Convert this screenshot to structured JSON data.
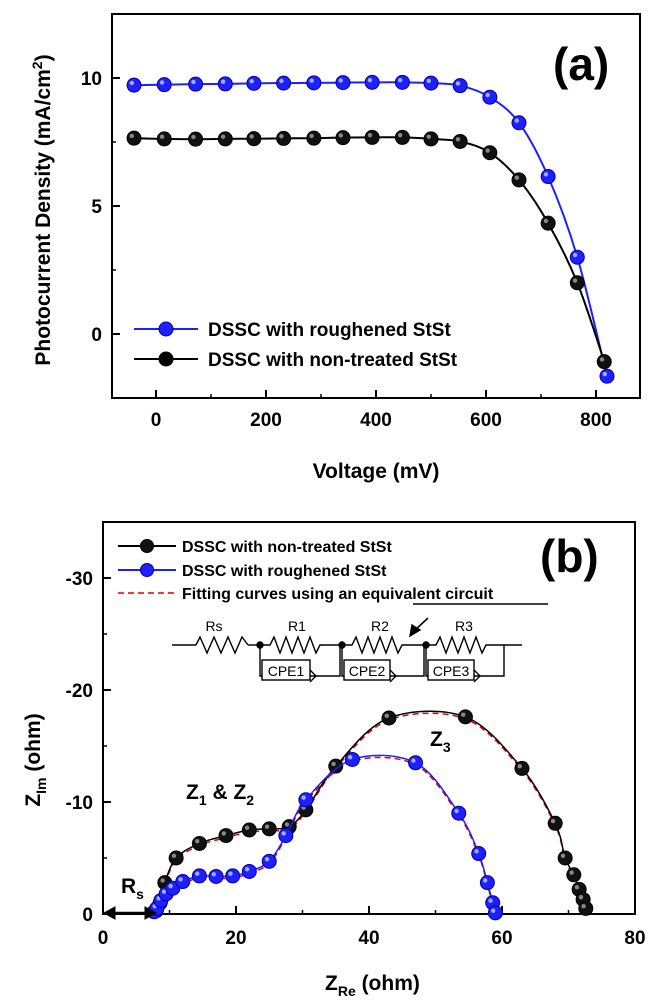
{
  "chart_data": [
    {
      "panel": "(a)",
      "type": "line",
      "xlabel": "Voltage (mV)",
      "ylabel": "Photocurrent Density (mA/cm",
      "ylabel_sup": "2",
      "ylabel_close": ")",
      "xlim": [
        -80,
        880
      ],
      "ylim": [
        -2.5,
        12.5
      ],
      "xticks": [
        0,
        200,
        400,
        600,
        800
      ],
      "yticks": [
        0,
        5,
        10
      ],
      "grid": false,
      "legend_position": "bottom-left",
      "series": [
        {
          "name": "DSSC with roughened StSt",
          "color": "#1f1fff",
          "x": [
            -40,
            15,
            72,
            126,
            178,
            232,
            287,
            340,
            393,
            448,
            500,
            553,
            607,
            660,
            713,
            766,
            820
          ],
          "y": [
            9.72,
            9.74,
            9.76,
            9.77,
            9.79,
            9.8,
            9.81,
            9.82,
            9.83,
            9.83,
            9.8,
            9.7,
            9.25,
            8.25,
            6.15,
            3.0,
            -1.65
          ]
        },
        {
          "name": "DSSC with non-treated StSt",
          "color": "#000000",
          "x": [
            -40,
            15,
            72,
            126,
            178,
            232,
            287,
            340,
            393,
            448,
            500,
            553,
            607,
            660,
            713,
            766,
            815
          ],
          "y": [
            7.65,
            7.62,
            7.61,
            7.62,
            7.63,
            7.64,
            7.65,
            7.67,
            7.68,
            7.68,
            7.62,
            7.52,
            7.08,
            6.02,
            4.33,
            2.0,
            -1.08
          ]
        }
      ]
    },
    {
      "panel": "(b)",
      "type": "scatter",
      "xlabel_main": "Z",
      "xlabel_sub": "Re",
      "xlabel_unit": " (ohm)",
      "ylabel_main": "Z",
      "ylabel_sub": "Im",
      "ylabel_unit": " (ohm)",
      "xlim": [
        0,
        80
      ],
      "ylim": [
        0,
        -35
      ],
      "xticks": [
        0,
        20,
        40,
        60,
        80
      ],
      "yticks": [
        0,
        -10,
        -20,
        -30
      ],
      "y_inverted": true,
      "grid": false,
      "legend_position": "top-left",
      "series": [
        {
          "name": "DSSC with non-treated StSt",
          "color": "#000000",
          "x": [
            8.0,
            8.6,
            9.3,
            11.0,
            14.5,
            18.5,
            22.0,
            25.0,
            28.0,
            30.5,
            35.0,
            43.0,
            54.5,
            63.0,
            68.0,
            69.5,
            70.8,
            71.6,
            72.2,
            72.6
          ],
          "y": [
            -0.3,
            -1.0,
            -2.8,
            -5.0,
            -6.3,
            -7.0,
            -7.5,
            -7.6,
            -7.8,
            -9.3,
            -13.2,
            -17.5,
            -17.6,
            -13.0,
            -8.1,
            -5.0,
            -3.5,
            -2.2,
            -1.3,
            -0.5
          ]
        },
        {
          "name": "DSSC with roughened StSt",
          "color": "#1f1fff",
          "x": [
            7.7,
            8.1,
            8.7,
            9.5,
            10.5,
            12.0,
            14.5,
            17.0,
            19.5,
            22.0,
            25.0,
            27.5,
            30.5,
            37.5,
            47.0,
            53.5,
            56.5,
            57.8,
            58.6,
            59.0
          ],
          "y": [
            -0.2,
            -0.5,
            -1.2,
            -1.8,
            -2.3,
            -2.9,
            -3.4,
            -3.35,
            -3.4,
            -3.8,
            -4.7,
            -7.0,
            -10.2,
            -13.8,
            -13.5,
            -9.0,
            -5.4,
            -2.8,
            -1.0,
            -0.1
          ]
        },
        {
          "name": "Fitting curves using an equivalent circuit",
          "color": "#e00000",
          "style": "dashed"
        }
      ],
      "annotations": {
        "z12_main": "Z",
        "z12_sub1": "1",
        "z12_mid": " & Z",
        "z12_sub2": "2",
        "z3_main": "Z",
        "z3_sub": "3",
        "rs_main": "R",
        "rs_sub": "s"
      },
      "circuit": {
        "labels": [
          "Rs",
          "R1",
          "R2",
          "R3"
        ],
        "cpe": [
          "CPE1",
          "CPE2",
          "CPE3"
        ]
      }
    }
  ]
}
